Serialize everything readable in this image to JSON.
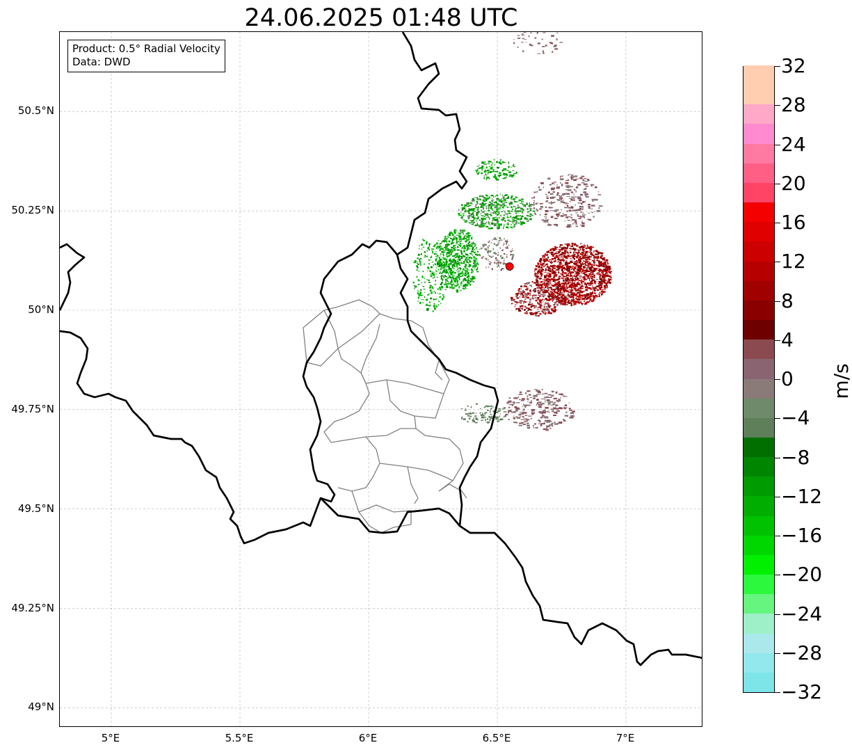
{
  "title": "24.06.2025 01:48 UTC",
  "info": {
    "product": "Product: 0.5° Radial Velocity",
    "source": "Data: DWD"
  },
  "map": {
    "lon_range": [
      4.8,
      7.3
    ],
    "lat_range": [
      48.95,
      50.7
    ],
    "x_ticks": [
      {
        "value": 5.0,
        "label": "5°E"
      },
      {
        "value": 5.5,
        "label": "5.5°E"
      },
      {
        "value": 6.0,
        "label": "6°E"
      },
      {
        "value": 6.5,
        "label": "6.5°E"
      },
      {
        "value": 7.0,
        "label": "7°E"
      }
    ],
    "y_ticks": [
      {
        "value": 49.0,
        "label": "49°N"
      },
      {
        "value": 49.25,
        "label": "49.25°N"
      },
      {
        "value": 49.5,
        "label": "49.5°N"
      },
      {
        "value": 49.75,
        "label": "49.75°N"
      },
      {
        "value": 50.0,
        "label": "50°N"
      },
      {
        "value": 50.25,
        "label": "50.25°N"
      },
      {
        "value": 50.5,
        "label": "50.5°N"
      }
    ],
    "grid": true,
    "radar_site": {
      "lon": 6.548,
      "lat": 50.11,
      "color": "#ff0000"
    },
    "colors": {
      "border": "#000000",
      "districts": "#808080",
      "grid": "#b0b0b0"
    }
  },
  "colorbar": {
    "unit": "m/s",
    "min": -32,
    "max": 32,
    "tick_labels": [
      {
        "value": 32,
        "label": "32"
      },
      {
        "value": 28,
        "label": "28"
      },
      {
        "value": 24,
        "label": "24"
      },
      {
        "value": 20,
        "label": "20"
      },
      {
        "value": 16,
        "label": "16"
      },
      {
        "value": 12,
        "label": "12"
      },
      {
        "value": 8,
        "label": "8"
      },
      {
        "value": 4,
        "label": "4"
      },
      {
        "value": 0,
        "label": "0"
      },
      {
        "value": -4,
        "label": "−4"
      },
      {
        "value": -8,
        "label": "−8"
      },
      {
        "value": -12,
        "label": "−12"
      },
      {
        "value": -16,
        "label": "−16"
      },
      {
        "value": -20,
        "label": "−20"
      },
      {
        "value": -24,
        "label": "−24"
      },
      {
        "value": -28,
        "label": "−28"
      },
      {
        "value": -32,
        "label": "−32"
      }
    ],
    "segments": [
      "#7de5e8",
      "#92e8ec",
      "#aae8ec",
      "#9ef0c8",
      "#66f57e",
      "#2cf83e",
      "#00f000",
      "#00d600",
      "#00c200",
      "#00ad00",
      "#009b00",
      "#008500",
      "#006f00",
      "#5e7f5a",
      "#6e8a6a",
      "#8a7a78",
      "#8a6470",
      "#8a4a50",
      "#6e0000",
      "#8a0000",
      "#a10000",
      "#b60000",
      "#cc0000",
      "#e00000",
      "#f50000",
      "#ff4466",
      "#ff5f85",
      "#ff7aa3",
      "#ff8ad0",
      "#ffa8c8",
      "#ffcdb0",
      "#ffcdb0"
    ]
  }
}
